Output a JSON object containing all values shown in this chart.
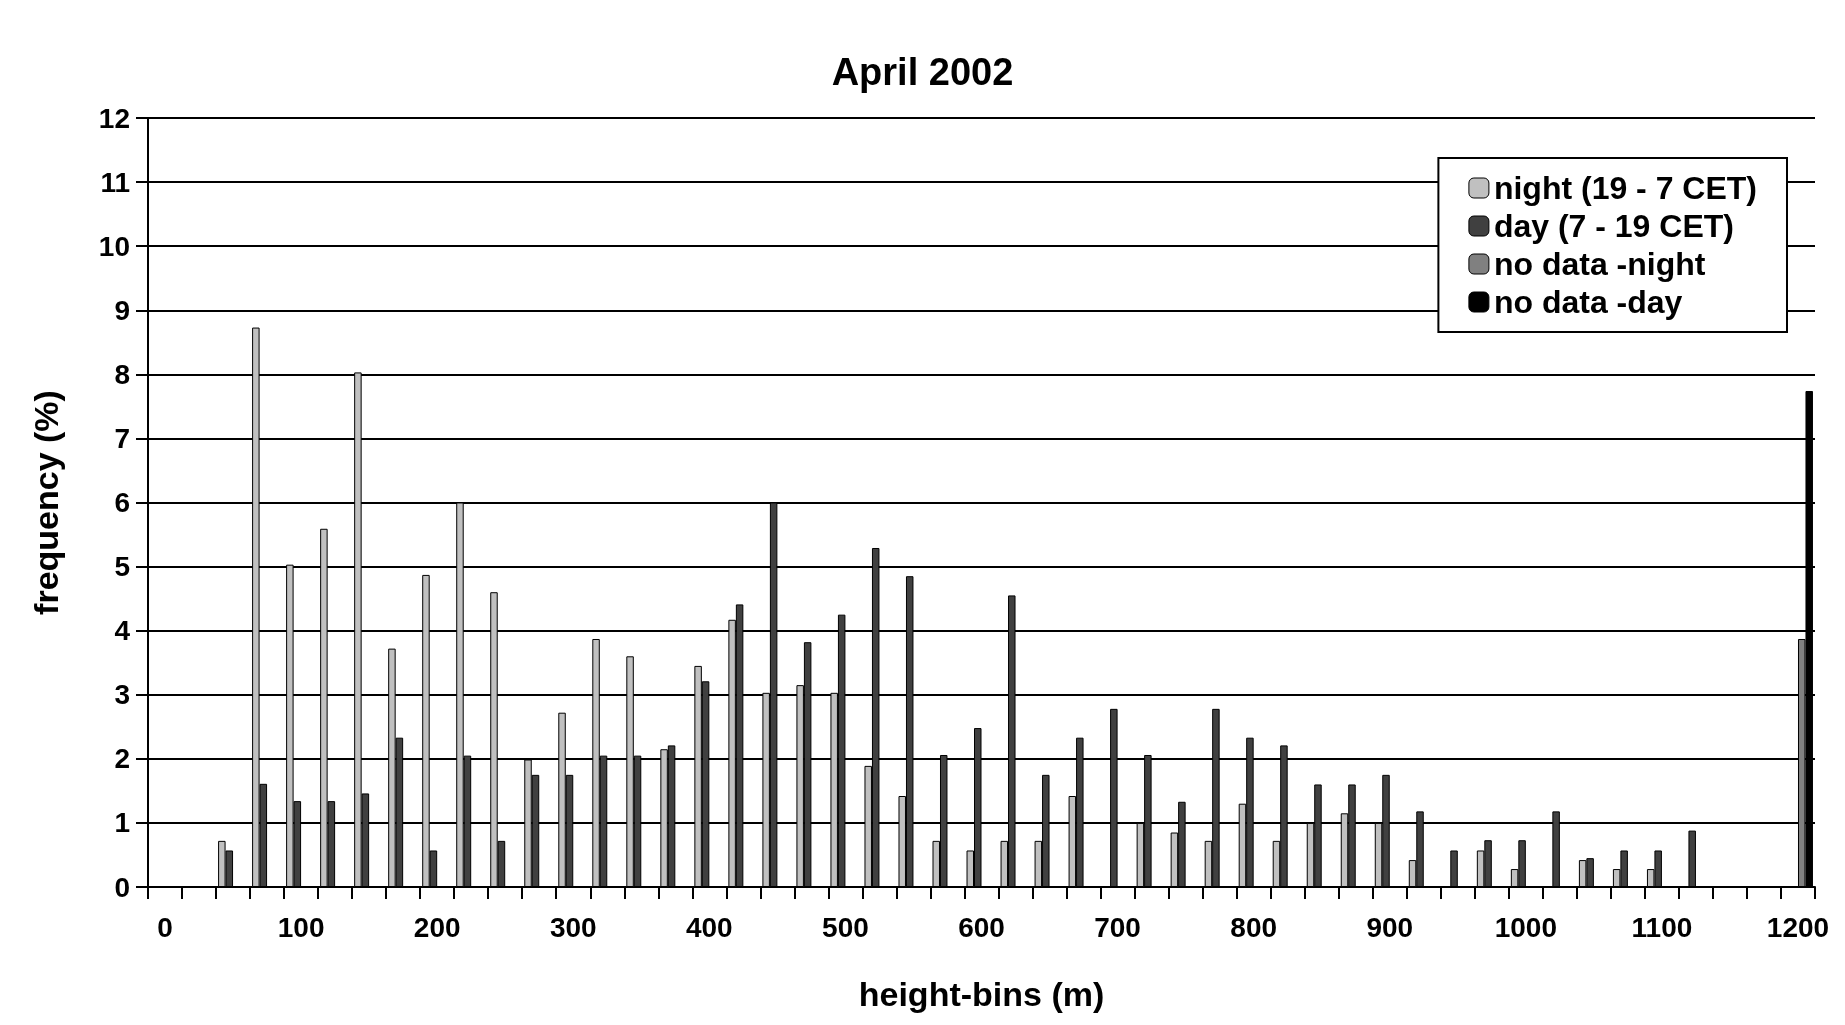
{
  "chart_data": {
    "type": "bar",
    "title": "April 2002",
    "xlabel": "height-bins (m)",
    "ylabel": "frequency (%)",
    "categories": [
      "0",
      null,
      null,
      null,
      "100",
      null,
      null,
      null,
      "200",
      null,
      null,
      null,
      "300",
      null,
      null,
      null,
      "400",
      null,
      null,
      null,
      "500",
      null,
      null,
      null,
      "600",
      null,
      null,
      null,
      "700",
      null,
      null,
      null,
      "800",
      null,
      null,
      null,
      "900",
      null,
      null,
      null,
      "1000",
      null,
      null,
      null,
      "1100",
      null,
      null,
      null,
      "1200"
    ],
    "series": [
      {
        "name": "night (19 - 7 CET)",
        "color": "#c0c0c0",
        "values": [
          null,
          null,
          0.72,
          8.73,
          5.03,
          5.59,
          8.03,
          3.72,
          4.87,
          6.0,
          4.6,
          1.99,
          2.72,
          3.87,
          3.6,
          2.15,
          3.45,
          4.17,
          3.03,
          3.15,
          3.03,
          1.89,
          1.42,
          0.72,
          0.57,
          0.72,
          0.72,
          1.42,
          null,
          1.0,
          0.85,
          0.72,
          1.3,
          0.72,
          1.0,
          1.15,
          1.0,
          0.42,
          null,
          0.57,
          0.28,
          null,
          0.42,
          0.28,
          0.28,
          null,
          null,
          null,
          null
        ]
      },
      {
        "name": "day (7 - 19 CET)",
        "color": "#404040",
        "values": [
          null,
          null,
          0.57,
          1.61,
          1.34,
          1.34,
          1.46,
          2.33,
          0.57,
          2.05,
          0.72,
          1.75,
          1.75,
          2.05,
          2.05,
          2.21,
          3.21,
          4.41,
          6.0,
          3.82,
          4.25,
          5.29,
          4.85,
          2.06,
          2.48,
          4.55,
          1.75,
          2.33,
          2.78,
          2.06,
          1.33,
          2.78,
          2.33,
          2.21,
          1.6,
          1.6,
          1.75,
          1.18,
          0.57,
          0.73,
          0.73,
          1.18,
          0.45,
          0.57,
          0.57,
          0.88,
          null,
          null,
          null
        ]
      },
      {
        "name": "no data -night",
        "color": "#808080",
        "values": [
          null,
          null,
          null,
          null,
          null,
          null,
          null,
          null,
          null,
          null,
          null,
          null,
          null,
          null,
          null,
          null,
          null,
          null,
          null,
          null,
          null,
          null,
          null,
          null,
          null,
          null,
          null,
          null,
          null,
          null,
          null,
          null,
          null,
          null,
          null,
          null,
          null,
          null,
          null,
          null,
          null,
          null,
          null,
          null,
          null,
          null,
          null,
          null,
          3.87
        ]
      },
      {
        "name": "no data -day",
        "color": "#000000",
        "values": [
          null,
          null,
          null,
          null,
          null,
          null,
          null,
          null,
          null,
          null,
          null,
          null,
          null,
          null,
          null,
          null,
          null,
          null,
          null,
          null,
          null,
          null,
          null,
          null,
          null,
          null,
          null,
          null,
          null,
          null,
          null,
          null,
          null,
          null,
          null,
          null,
          null,
          null,
          null,
          null,
          null,
          null,
          null,
          null,
          null,
          null,
          null,
          null,
          7.74
        ]
      }
    ],
    "ylim": [
      0,
      12
    ],
    "yticks": [
      0,
      1,
      2,
      3,
      4,
      5,
      6,
      7,
      8,
      9,
      10,
      11,
      12
    ],
    "grid": "y",
    "legend": "top right"
  }
}
